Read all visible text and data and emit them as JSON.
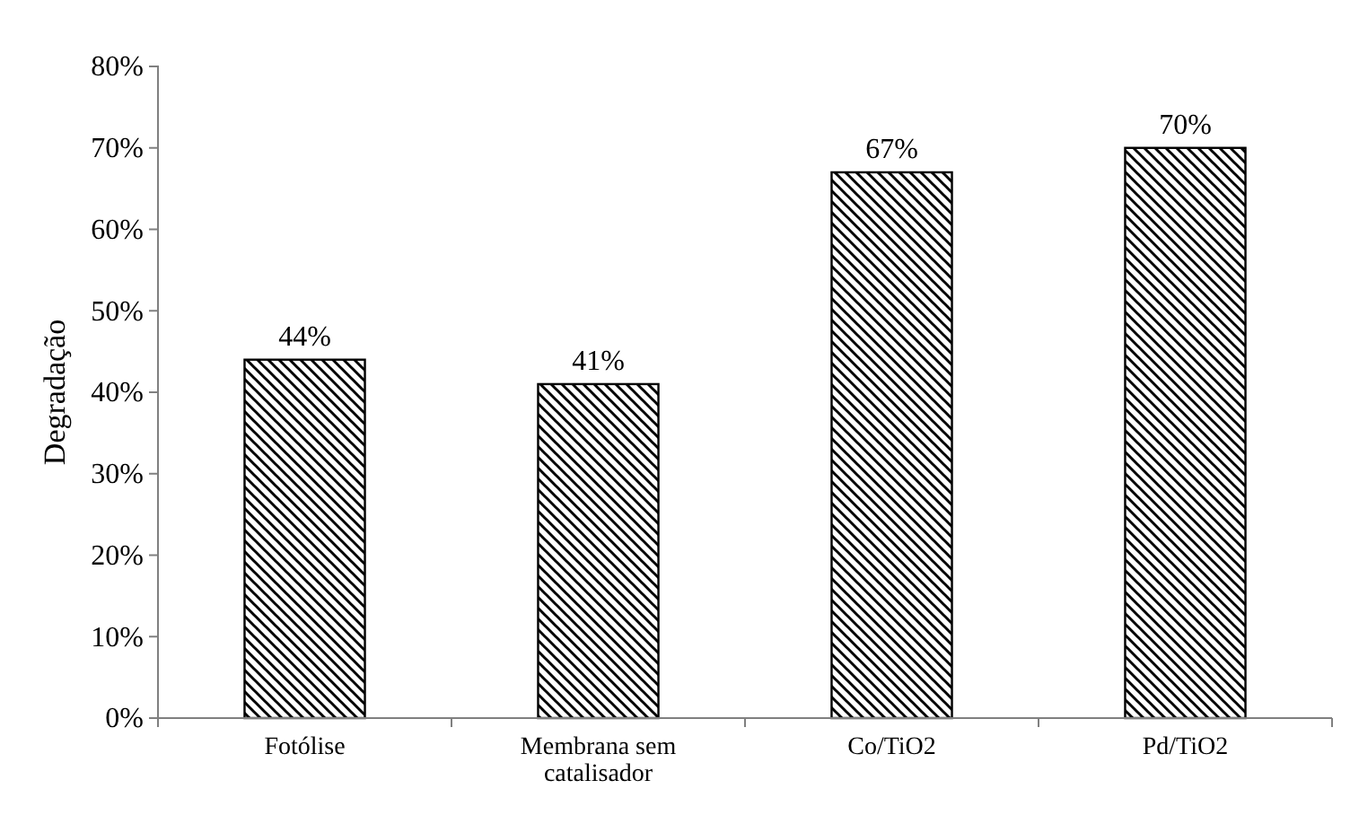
{
  "chart_data": {
    "type": "bar",
    "ylabel": "Degradação",
    "categories": [
      "Fotólise",
      "Membrana sem catalisador",
      "Co/TiO2",
      "Pd/TiO2"
    ],
    "values": [
      44,
      41,
      67,
      70
    ],
    "value_labels": [
      "44%",
      "41%",
      "67%",
      "70%"
    ],
    "color": "#000000",
    "ylim": [
      0,
      80
    ],
    "yticks": [
      {
        "value": 0,
        "label": "0%"
      },
      {
        "value": 10,
        "label": "10%"
      },
      {
        "value": 20,
        "label": "20%"
      },
      {
        "value": 30,
        "label": "30%"
      },
      {
        "value": 40,
        "label": "40%"
      },
      {
        "value": 50,
        "label": "50%"
      },
      {
        "value": 60,
        "label": "60%"
      },
      {
        "value": 70,
        "label": "70%"
      },
      {
        "value": 80,
        "label": "80%"
      }
    ],
    "grid": false
  }
}
